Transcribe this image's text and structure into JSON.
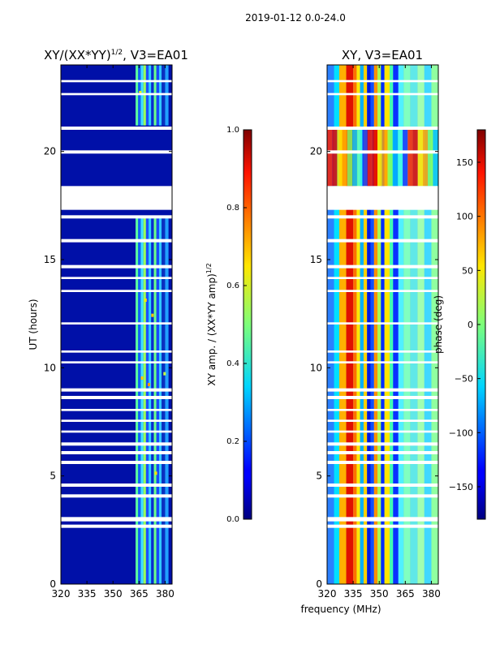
{
  "suptitle": "2019-01-12 0.0-24.0",
  "xlabel": "frequency (MHz)",
  "chart_data": [
    {
      "type": "heatmap",
      "title_main": "XY/(XX*YY)",
      "title_sup": "1/2",
      "title_rest": ", V3=EA01",
      "ylabel": "UT (hours)",
      "xlim": [
        320,
        384
      ],
      "ylim": [
        0,
        24
      ],
      "xticks": [
        320,
        335,
        350,
        365,
        380
      ],
      "yticks": [
        0,
        5,
        10,
        15,
        20
      ],
      "gaps": [
        [
          2.6,
          2.75
        ],
        [
          2.9,
          3.1
        ],
        [
          4.0,
          4.15
        ],
        [
          4.5,
          4.65
        ],
        [
          5.55,
          5.7
        ],
        [
          6.0,
          6.15
        ],
        [
          6.4,
          6.55
        ],
        [
          7.0,
          7.1
        ],
        [
          7.5,
          7.6
        ],
        [
          8.0,
          8.1
        ],
        [
          8.55,
          8.7
        ],
        [
          8.9,
          9.05
        ],
        [
          10.2,
          10.3
        ],
        [
          10.7,
          10.8
        ],
        [
          12.0,
          12.1
        ],
        [
          13.5,
          13.6
        ],
        [
          14.1,
          14.2
        ],
        [
          14.6,
          14.75
        ],
        [
          15.8,
          15.95
        ],
        [
          16.9,
          17.05
        ],
        [
          17.3,
          18.4
        ],
        [
          19.9,
          20.05
        ],
        [
          21.0,
          21.15
        ],
        [
          22.6,
          22.7
        ],
        [
          23.2,
          23.3
        ]
      ],
      "colorbar": {
        "label_main": "XY amp. / (XX*YY amp)",
        "label_sup": "1/2",
        "range": [
          0.0,
          1.0
        ],
        "ticks": [
          "0.0",
          "0.2",
          "0.4",
          "0.6",
          "0.8",
          "1.0"
        ]
      }
    },
    {
      "type": "heatmap",
      "title": "XY, V3=EA01",
      "xlim": [
        320,
        384
      ],
      "ylim": [
        0,
        24
      ],
      "xticks": [
        320,
        335,
        350,
        365,
        380
      ],
      "yticks": [
        0,
        5,
        10,
        15,
        20
      ],
      "gaps": [
        [
          2.6,
          2.75
        ],
        [
          2.9,
          3.1
        ],
        [
          4.0,
          4.15
        ],
        [
          4.5,
          4.65
        ],
        [
          5.55,
          5.7
        ],
        [
          6.0,
          6.15
        ],
        [
          6.4,
          6.55
        ],
        [
          7.0,
          7.1
        ],
        [
          7.5,
          7.6
        ],
        [
          8.0,
          8.1
        ],
        [
          8.55,
          8.7
        ],
        [
          8.9,
          9.05
        ],
        [
          10.2,
          10.3
        ],
        [
          10.7,
          10.8
        ],
        [
          12.0,
          12.1
        ],
        [
          13.5,
          13.6
        ],
        [
          14.1,
          14.2
        ],
        [
          14.6,
          14.75
        ],
        [
          15.8,
          15.95
        ],
        [
          16.9,
          17.05
        ],
        [
          17.3,
          18.4
        ],
        [
          19.9,
          20.05
        ],
        [
          21.0,
          21.15
        ],
        [
          22.6,
          22.7
        ],
        [
          23.2,
          23.3
        ]
      ],
      "colorbar": {
        "label": "phase (deg)",
        "range": [
          -180,
          180
        ],
        "ticks": [
          "150",
          "100",
          "50",
          "0",
          "−50",
          "−100",
          "−150"
        ],
        "tick_values": [
          150,
          100,
          50,
          0,
          -50,
          -100,
          -150
        ]
      }
    }
  ]
}
